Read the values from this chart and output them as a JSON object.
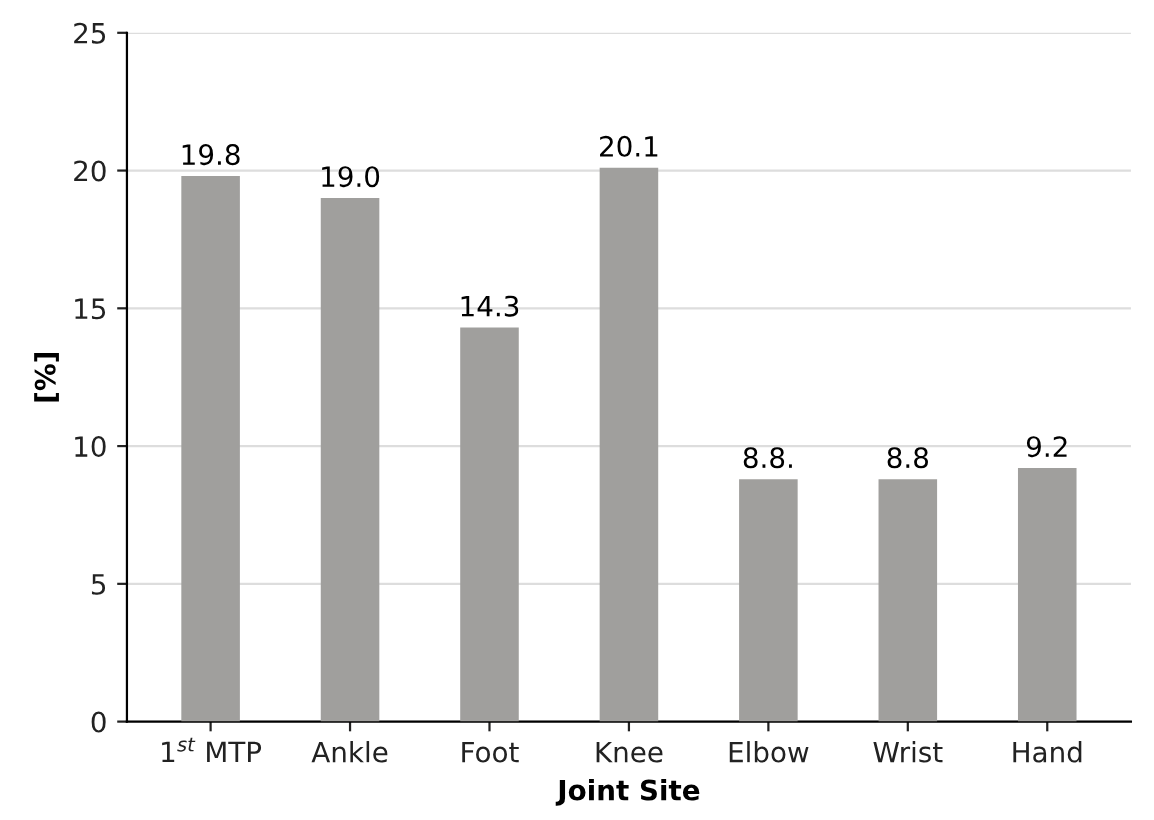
{
  "chart_data": {
    "type": "bar",
    "categories": [
      "1$^{st}$ MTP",
      "Ankle",
      "Foot",
      "Knee",
      "Elbow",
      "Wrist",
      "Hand"
    ],
    "values": [
      19.8,
      19.0,
      14.3,
      20.1,
      8.8,
      8.8,
      9.2
    ],
    "value_labels": [
      "19.8",
      "19.0",
      "14.3",
      "20.1",
      "8.8.",
      "8.8",
      "9.2"
    ],
    "color": "#a09f9d",
    "xlabel": "Joint Site",
    "ylabel": "[%]",
    "ylim": [
      0,
      25
    ],
    "yticks": [
      0,
      5,
      10,
      15,
      20,
      25
    ],
    "grid": "y"
  }
}
